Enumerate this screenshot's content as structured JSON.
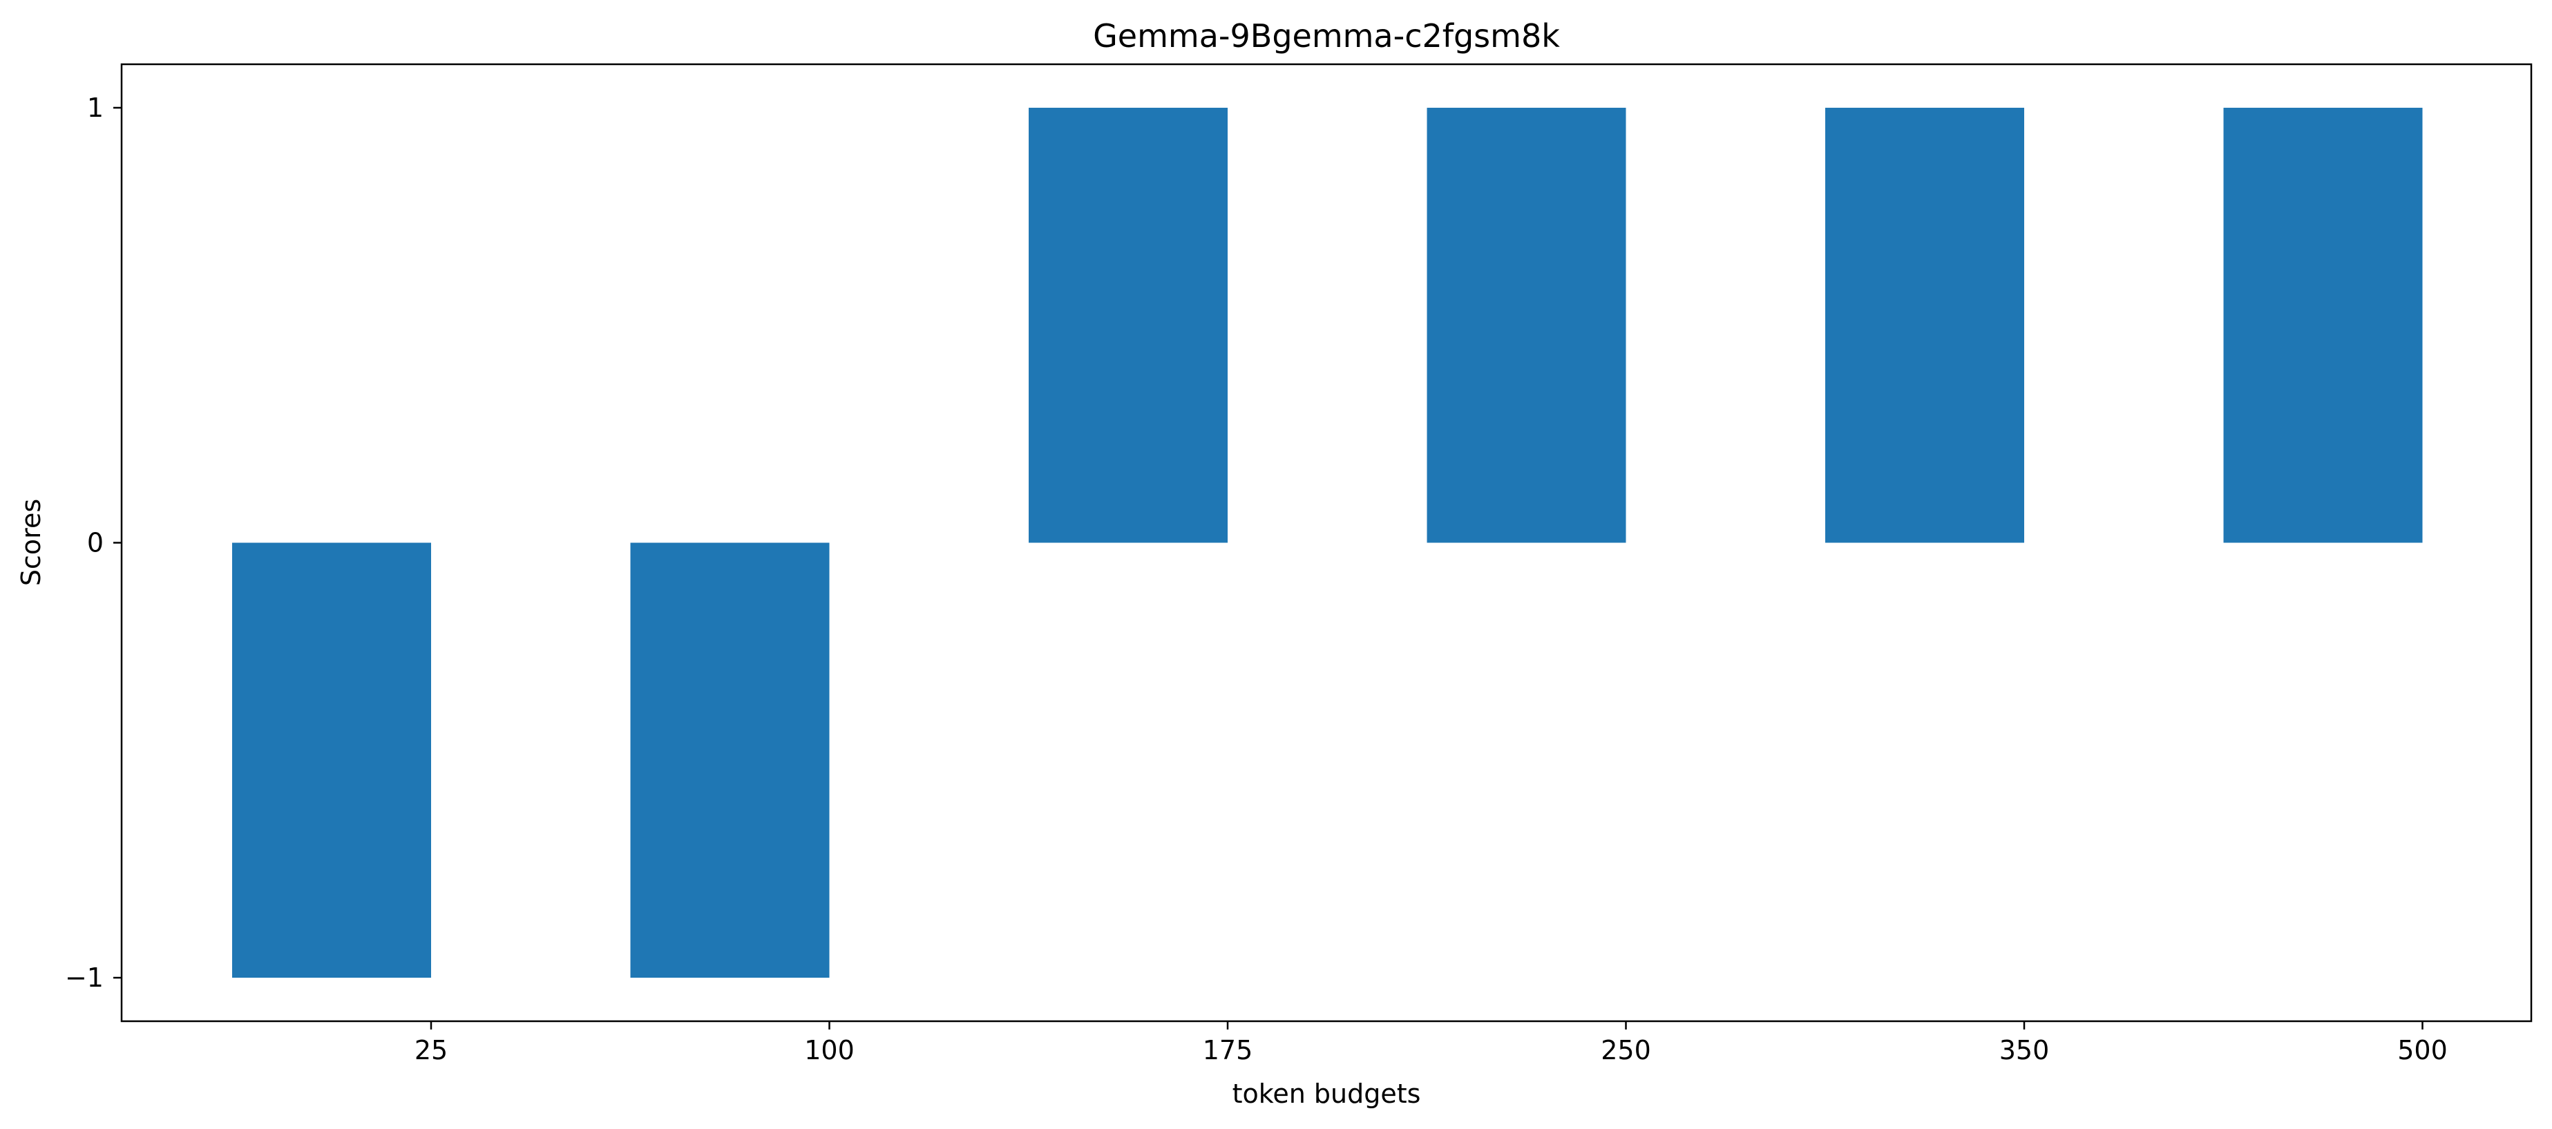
{
  "chart_data": {
    "type": "bar",
    "title": "Gemma-9Bgemma-c2fgsm8k",
    "xlabel": "token budgets",
    "ylabel": "Scores",
    "categories": [
      "25",
      "100",
      "175",
      "250",
      "350",
      "500"
    ],
    "values": [
      -1,
      -1,
      1,
      1,
      1,
      1
    ],
    "yticks": [
      "−1",
      "0",
      "1"
    ],
    "ytick_values": [
      -1,
      0,
      1
    ],
    "ylim": [
      -1.1,
      1.1
    ],
    "grid": false,
    "legend": "none",
    "bar_color": "#1f77b4"
  }
}
